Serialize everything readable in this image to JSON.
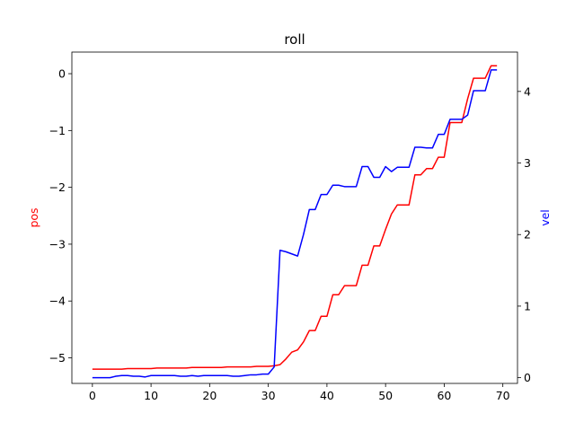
{
  "chart_data": {
    "type": "line",
    "title": "roll",
    "xlabel": "",
    "ylabel": "pos",
    "ylabel_right": "vel",
    "xlim": [
      -3.5,
      72.5
    ],
    "ylim": [
      -5.45,
      0.38
    ],
    "ylim_right": [
      -0.08,
      4.55
    ],
    "x_ticks": [
      0,
      10,
      20,
      30,
      40,
      50,
      60,
      70
    ],
    "y_ticks": [
      0,
      -1,
      -2,
      -3,
      -4,
      -5
    ],
    "y_ticks_right": [
      0,
      1,
      2,
      3,
      4
    ],
    "grid": false,
    "colors": {
      "pos": "#ff0000",
      "vel": "#0000ff"
    },
    "series": [
      {
        "name": "pos",
        "axis": "left",
        "x": [
          0,
          1,
          2,
          3,
          4,
          5,
          6,
          7,
          8,
          9,
          10,
          11,
          12,
          13,
          14,
          15,
          16,
          17,
          18,
          19,
          20,
          21,
          22,
          23,
          24,
          25,
          26,
          27,
          28,
          29,
          30,
          31,
          32,
          33,
          34,
          35,
          36,
          37,
          38,
          39,
          40,
          41,
          42,
          43,
          44,
          45,
          46,
          47,
          48,
          49,
          50,
          51,
          52,
          53,
          54,
          55,
          56,
          57,
          58,
          59,
          60,
          61,
          62,
          63,
          64,
          65,
          66,
          67,
          68,
          69
        ],
        "values": [
          -5.2,
          -5.2,
          -5.2,
          -5.2,
          -5.2,
          -5.2,
          -5.19,
          -5.19,
          -5.19,
          -5.19,
          -5.19,
          -5.18,
          -5.18,
          -5.18,
          -5.18,
          -5.18,
          -5.18,
          -5.17,
          -5.17,
          -5.17,
          -5.17,
          -5.17,
          -5.17,
          -5.16,
          -5.16,
          -5.16,
          -5.16,
          -5.16,
          -5.15,
          -5.15,
          -5.15,
          -5.14,
          -5.12,
          -5.02,
          -4.9,
          -4.86,
          -4.72,
          -4.52,
          -4.52,
          -4.27,
          -4.27,
          -3.89,
          -3.89,
          -3.73,
          -3.73,
          -3.73,
          -3.37,
          -3.37,
          -3.03,
          -3.03,
          -2.74,
          -2.47,
          -2.31,
          -2.31,
          -2.31,
          -1.78,
          -1.78,
          -1.67,
          -1.67,
          -1.47,
          -1.47,
          -0.86,
          -0.86,
          -0.86,
          -0.44,
          -0.08,
          -0.08,
          -0.08,
          0.14,
          0.14
        ]
      },
      {
        "name": "vel",
        "axis": "right",
        "x": [
          0,
          1,
          2,
          3,
          4,
          5,
          6,
          7,
          8,
          9,
          10,
          11,
          12,
          13,
          14,
          15,
          16,
          17,
          18,
          19,
          20,
          21,
          22,
          23,
          24,
          25,
          26,
          27,
          28,
          29,
          30,
          31,
          32,
          33,
          34,
          35,
          36,
          37,
          38,
          39,
          40,
          41,
          42,
          43,
          44,
          45,
          46,
          47,
          48,
          49,
          50,
          51,
          52,
          53,
          54,
          55,
          56,
          57,
          58,
          59,
          60,
          61,
          62,
          63,
          64,
          65,
          66,
          67,
          68,
          69
        ],
        "values": [
          0,
          0,
          0,
          0,
          0.02,
          0.03,
          0.03,
          0.02,
          0.02,
          0.01,
          0.03,
          0.03,
          0.03,
          0.03,
          0.03,
          0.02,
          0.02,
          0.03,
          0.02,
          0.03,
          0.03,
          0.03,
          0.03,
          0.03,
          0.02,
          0.02,
          0.03,
          0.04,
          0.04,
          0.05,
          0.05,
          0.15,
          1.78,
          1.76,
          1.73,
          1.7,
          2.0,
          2.35,
          2.35,
          2.56,
          2.56,
          2.69,
          2.69,
          2.67,
          2.67,
          2.67,
          2.95,
          2.95,
          2.8,
          2.8,
          2.95,
          2.88,
          2.94,
          2.94,
          2.94,
          3.22,
          3.22,
          3.21,
          3.21,
          3.4,
          3.4,
          3.61,
          3.61,
          3.61,
          3.67,
          4.01,
          4.01,
          4.01,
          4.3,
          4.3
        ]
      }
    ]
  }
}
